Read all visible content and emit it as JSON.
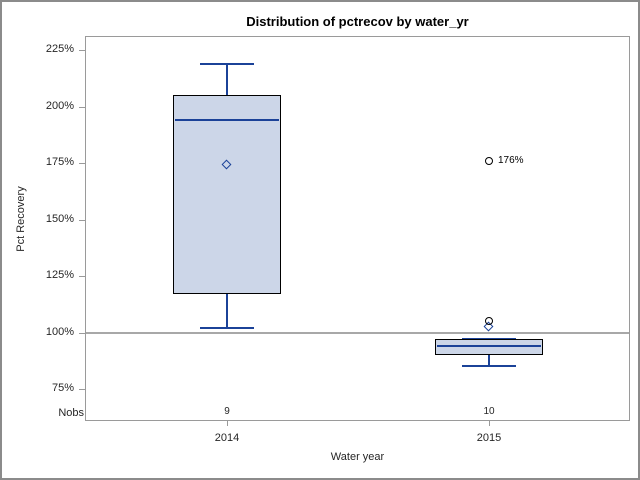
{
  "chart_data": {
    "type": "boxplot",
    "title": "Distribution of pctrecov by water_yr",
    "xlabel": "Water year",
    "ylabel": "Pct Recovery",
    "nobs_row_label": "Nobs",
    "y_ticks": [
      {
        "value": 225,
        "label": "225%"
      },
      {
        "value": 200,
        "label": "200%"
      },
      {
        "value": 175,
        "label": "175%"
      },
      {
        "value": 150,
        "label": "150%"
      },
      {
        "value": 125,
        "label": "125%"
      },
      {
        "value": 100,
        "label": "100%"
      },
      {
        "value": 75,
        "label": "75%"
      }
    ],
    "ylim": [
      61,
      231
    ],
    "reference_line_value": 100,
    "grid": false,
    "legend": "none",
    "categories": [
      "2014",
      "2015"
    ],
    "groups": [
      {
        "category": "2014",
        "nobs": "9",
        "whisker_low": 102,
        "q1": 117,
        "median": 194,
        "q3": 205,
        "whisker_high": 219,
        "mean": 174,
        "outliers": []
      },
      {
        "category": "2015",
        "nobs": "10",
        "whisker_low": 85,
        "q1": 90,
        "median": 94,
        "q3": 97,
        "whisker_high": 97,
        "mean": 102,
        "outliers": [
          {
            "value": 105,
            "label": ""
          },
          {
            "value": 176,
            "label": "176%"
          }
        ]
      }
    ],
    "colors": {
      "box_fill": "#ccd6e8",
      "box_border": "#000000",
      "line": "#1b4298",
      "reference_line": "#a8a8a8",
      "axis": "#9a9a9a",
      "text": "#262626"
    }
  }
}
